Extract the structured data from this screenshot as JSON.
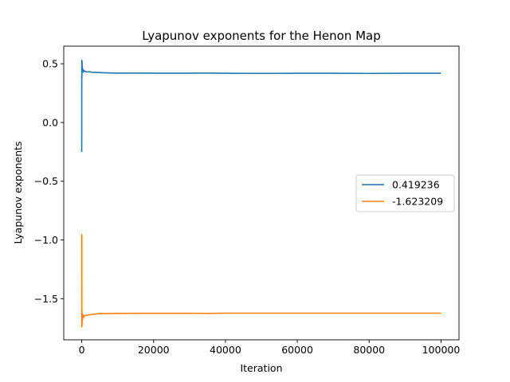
{
  "chart_data": {
    "type": "line",
    "title": "Lyapunov exponents for the Henon Map",
    "xlabel": "Iteration",
    "ylabel": "Lyapunov exponents",
    "xlim": [
      -5000,
      105000
    ],
    "ylim": [
      -1.85,
      0.65
    ],
    "xticks": [
      0,
      20000,
      40000,
      60000,
      80000,
      100000
    ],
    "xtick_labels": [
      "0",
      "20000",
      "40000",
      "60000",
      "80000",
      "100000"
    ],
    "yticks": [
      0.5,
      0.0,
      -0.5,
      -1.0,
      -1.5
    ],
    "ytick_labels": [
      "0.5",
      "0.0",
      "−0.5",
      "−1.0",
      "−1.5"
    ],
    "grid": false,
    "legend": "center-right",
    "series": [
      {
        "name": "0.419236",
        "color": "#1f77b4",
        "x": [
          0,
          20,
          50,
          100,
          150,
          200,
          300,
          400,
          500,
          700,
          1000,
          1500,
          2000,
          3000,
          5000,
          8000,
          10000,
          15000,
          20000,
          30000,
          35000,
          40000,
          50000,
          60000,
          70000,
          80000,
          90000,
          100000
        ],
        "y": [
          -0.25,
          0.53,
          0.38,
          0.52,
          0.44,
          0.47,
          0.43,
          0.45,
          0.43,
          0.44,
          0.435,
          0.43,
          0.432,
          0.428,
          0.425,
          0.422,
          0.42,
          0.421,
          0.42,
          0.42,
          0.421,
          0.419,
          0.418,
          0.419,
          0.419,
          0.418,
          0.419,
          0.419
        ]
      },
      {
        "name": "-1.623209",
        "color": "#ff7f0e",
        "x": [
          0,
          20,
          50,
          100,
          150,
          200,
          300,
          400,
          500,
          700,
          1000,
          1500,
          2000,
          3000,
          5000,
          8000,
          10000,
          15000,
          20000,
          30000,
          35000,
          40000,
          50000,
          60000,
          70000,
          80000,
          90000,
          100000
        ],
        "y": [
          -0.95,
          -1.74,
          -1.6,
          -1.72,
          -1.63,
          -1.68,
          -1.64,
          -1.66,
          -1.64,
          -1.65,
          -1.642,
          -1.64,
          -1.637,
          -1.633,
          -1.628,
          -1.626,
          -1.625,
          -1.624,
          -1.624,
          -1.624,
          -1.625,
          -1.623,
          -1.623,
          -1.623,
          -1.623,
          -1.623,
          -1.623,
          -1.623
        ]
      }
    ]
  }
}
